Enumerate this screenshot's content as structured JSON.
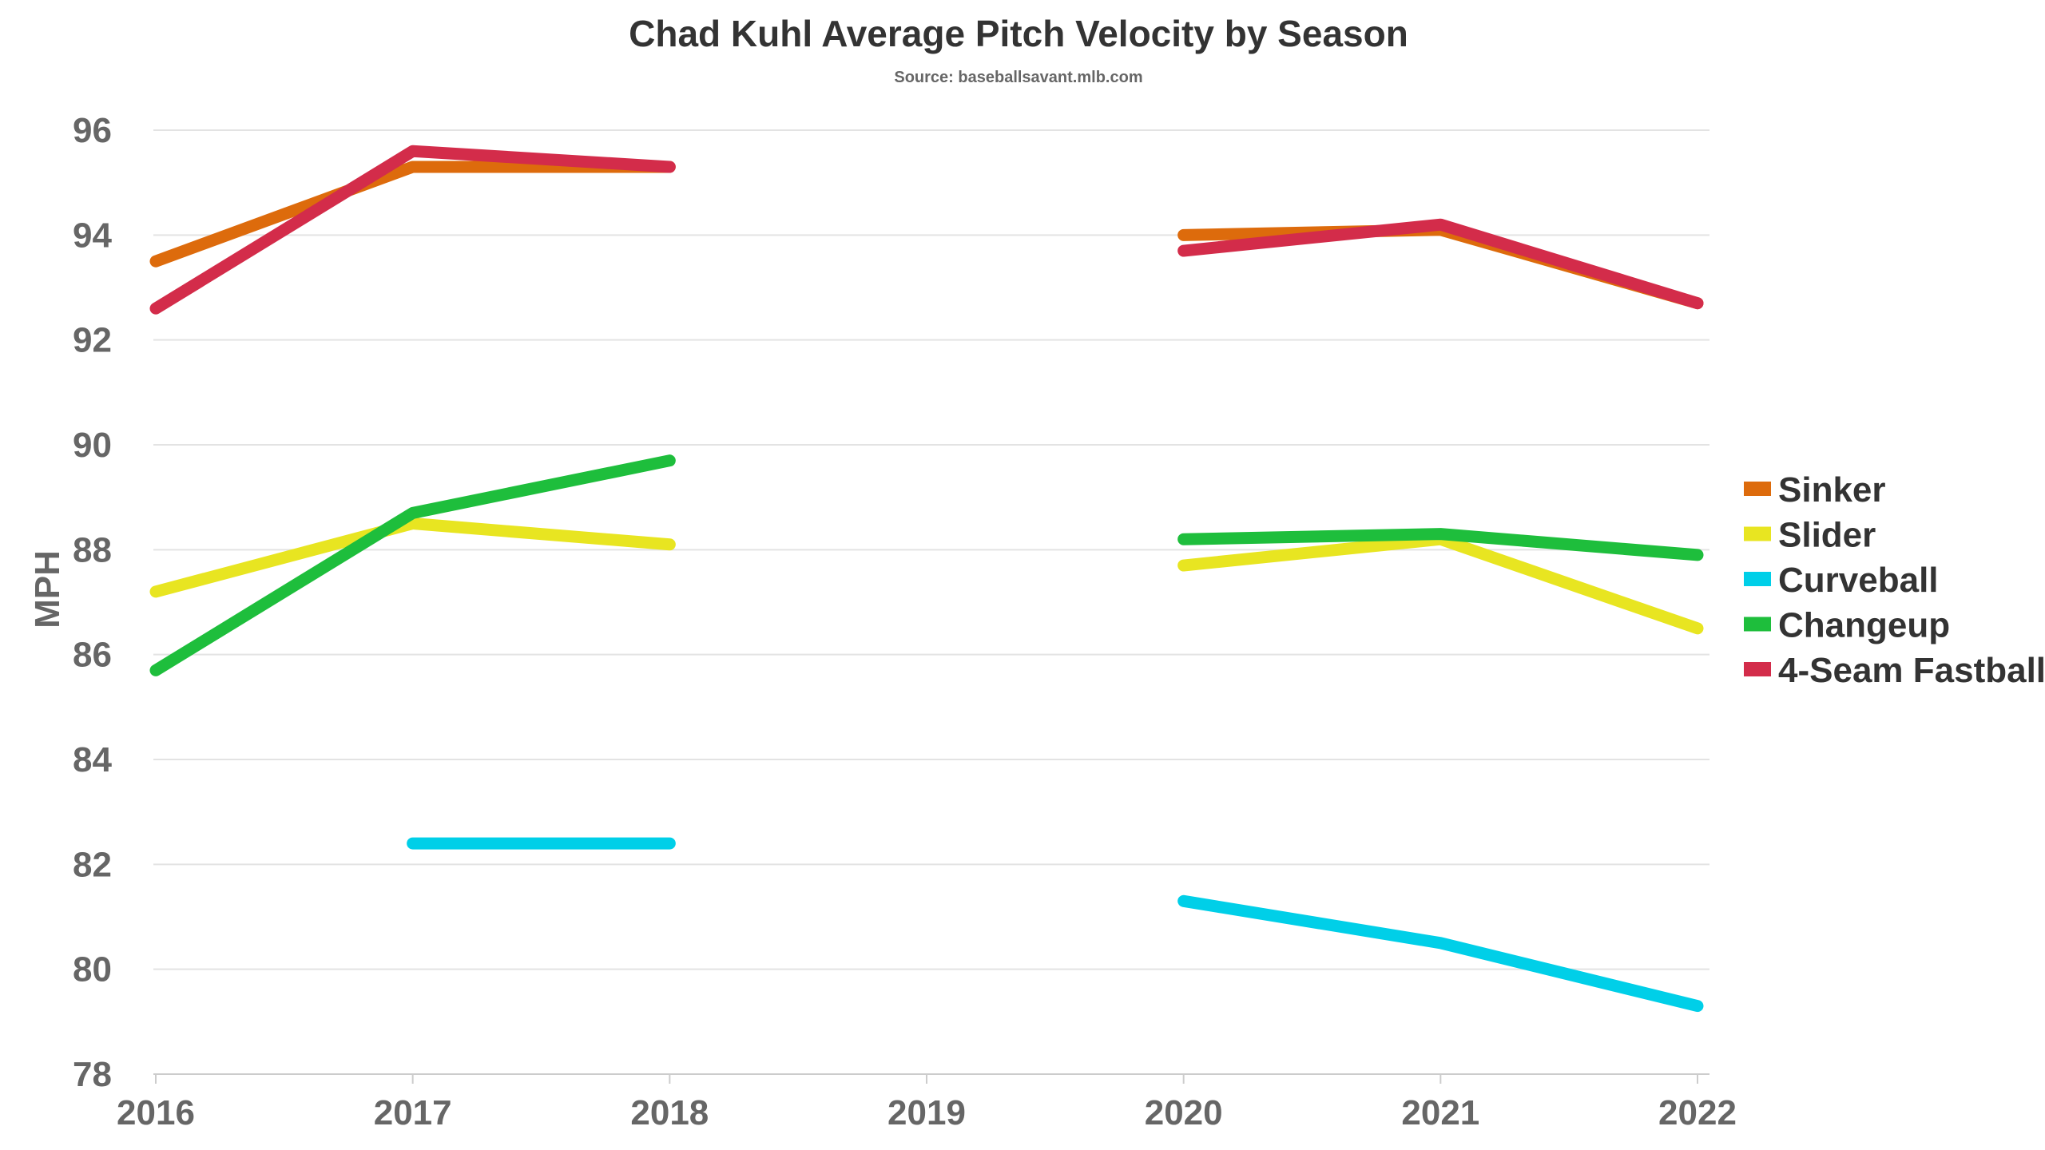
{
  "chart_data": {
    "type": "line",
    "title": "Chad Kuhl Average Pitch Velocity by Season",
    "subtitle": "Source: baseballsavant.mlb.com",
    "xlabel": "",
    "ylabel": "MPH",
    "x": [
      2016,
      2017,
      2018,
      2019,
      2020,
      2021,
      2022
    ],
    "x_tick_labels": [
      "2016",
      "2017",
      "2018",
      "2019",
      "2020",
      "2021",
      "2022"
    ],
    "ylim": [
      78,
      96
    ],
    "y_ticks": [
      78,
      80,
      82,
      84,
      86,
      88,
      90,
      92,
      94,
      96
    ],
    "grid": true,
    "legend_position": "right",
    "series": [
      {
        "name": "Sinker",
        "color": "#dd6b0c",
        "values": [
          93.5,
          95.3,
          95.3,
          null,
          94.0,
          94.1,
          92.7
        ]
      },
      {
        "name": "Slider",
        "color": "#e8e521",
        "values": [
          87.2,
          88.5,
          88.1,
          null,
          87.7,
          88.2,
          86.5
        ]
      },
      {
        "name": "Curveball",
        "color": "#00cfe8",
        "values": [
          null,
          82.4,
          82.4,
          null,
          81.3,
          80.5,
          79.3
        ]
      },
      {
        "name": "Changeup",
        "color": "#1ebe3c",
        "values": [
          85.7,
          88.7,
          89.7,
          null,
          88.2,
          88.3,
          87.9
        ]
      },
      {
        "name": "4-Seam Fastball",
        "color": "#d32c4a",
        "values": [
          92.6,
          95.6,
          95.3,
          null,
          93.7,
          94.2,
          92.7
        ]
      }
    ]
  }
}
